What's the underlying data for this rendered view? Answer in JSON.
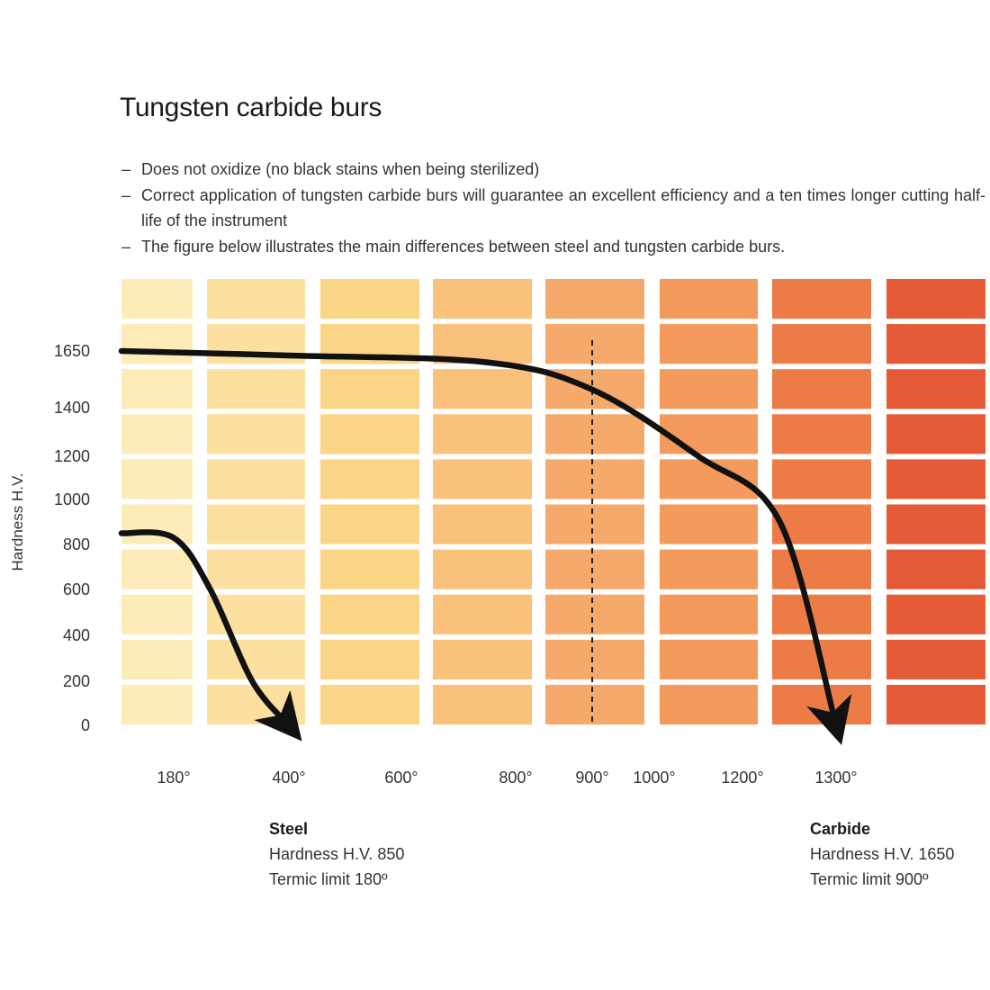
{
  "title": "Tungsten carbide burs",
  "bullets": [
    "Does not oxidize (no black stains when being sterilized)",
    "Correct application of tungsten carbide burs will guarantee an excellent efficiency and a ten times longer cutting half-life of the instrument",
    "The figure below illustrates the main differences between steel and tungsten carbide burs."
  ],
  "bullet_marker": "–",
  "colors": {
    "column_fills": [
      "#fdebb8",
      "#fde0a0",
      "#fcd486",
      "#f9c17a",
      "#f5a96a",
      "#f39a5c",
      "#ec7b46",
      "#e45a36"
    ],
    "curve": "#111111"
  },
  "chart_data": {
    "type": "line",
    "ylabel": "Hardness H.V.",
    "xlabel": "",
    "y_ticks": [
      0,
      200,
      400,
      600,
      800,
      1000,
      1200,
      1400,
      1650
    ],
    "x_ticks": [
      "180°",
      "400°",
      "600°",
      "800°",
      "900°",
      "1000°",
      "1200°",
      "1300°"
    ],
    "ylim": [
      0,
      1650
    ],
    "grid": true,
    "dashed_marker": "900°",
    "series": [
      {
        "name": "Steel",
        "values": [
          [
            135,
            850
          ],
          [
            180,
            830
          ],
          [
            250,
            600
          ],
          [
            330,
            200
          ],
          [
            400,
            0
          ]
        ]
      },
      {
        "name": "Carbide",
        "values": [
          [
            135,
            1650
          ],
          [
            400,
            1630
          ],
          [
            750,
            1600
          ],
          [
            900,
            1480
          ],
          [
            1100,
            1200
          ],
          [
            1240,
            900
          ],
          [
            1300,
            0
          ]
        ]
      }
    ]
  },
  "legend": {
    "steel": {
      "name": "Steel",
      "line1": "Hardness H.V. 850",
      "line2": "Termic limit 180º"
    },
    "carbide": {
      "name": "Carbide",
      "line1": "Hardness H.V. 1650",
      "line2": "Termic limit 900º"
    }
  }
}
